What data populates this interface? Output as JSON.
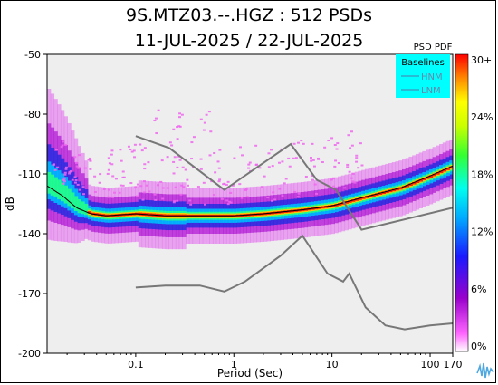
{
  "header": {
    "title_line1": "9S.MTZ03.--.HGZ : 512 PSDs",
    "title_line2": "11-JUL-2025 / 22-JUL-2025"
  },
  "colors": {
    "plot_background": "#eeeeee",
    "legend_background": "#00ffff",
    "baseline_line": "#777777"
  },
  "chart_data": {
    "type": "heatmap",
    "title": "9S.MTZ03.--.HGZ : 512 PSDs",
    "subtitle": "11-JUL-2025 / 22-JUL-2025",
    "xlabel": "Period (Sec)",
    "ylabel": "dB",
    "x_scale": "log",
    "xlim": [
      0.0125,
      170
    ],
    "ylim": [
      -200,
      -50
    ],
    "x_ticks": [
      {
        "value": 0.1,
        "label": "0.1"
      },
      {
        "value": 1,
        "label": "1"
      },
      {
        "value": 10,
        "label": "10"
      },
      {
        "value": 100,
        "label": "100"
      },
      {
        "value": 170,
        "label": "170"
      }
    ],
    "y_ticks": [
      {
        "value": -50,
        "label": "-50"
      },
      {
        "value": -80,
        "label": "-80"
      },
      {
        "value": -110,
        "label": "-110"
      },
      {
        "value": -140,
        "label": "-140"
      },
      {
        "value": -170,
        "label": "-170"
      },
      {
        "value": -200,
        "label": "-200"
      }
    ],
    "colorbar": {
      "title": "PSD PDF",
      "range_percent": [
        0,
        30
      ],
      "tick_labels": [
        "30+",
        "24%",
        "18%",
        "12%",
        "6%",
        "0%"
      ]
    },
    "legend": {
      "placement": "top-right",
      "title": "Baselines",
      "entries": [
        "HNM",
        "LNM"
      ]
    },
    "baselines": {
      "HNM": [
        {
          "x": 0.1,
          "y": -91
        },
        {
          "x": 0.22,
          "y": -97
        },
        {
          "x": 0.8,
          "y": -118
        },
        {
          "x": 3.8,
          "y": -95
        },
        {
          "x": 7,
          "y": -113
        },
        {
          "x": 11,
          "y": -118
        },
        {
          "x": 20,
          "y": -138
        },
        {
          "x": 170,
          "y": -127
        }
      ],
      "LNM": [
        {
          "x": 0.1,
          "y": -167
        },
        {
          "x": 0.2,
          "y": -166
        },
        {
          "x": 0.45,
          "y": -166
        },
        {
          "x": 0.8,
          "y": -169
        },
        {
          "x": 1.3,
          "y": -164
        },
        {
          "x": 3,
          "y": -151
        },
        {
          "x": 5,
          "y": -141
        },
        {
          "x": 9,
          "y": -160
        },
        {
          "x": 13,
          "y": -164
        },
        {
          "x": 15,
          "y": -160
        },
        {
          "x": 22,
          "y": -177
        },
        {
          "x": 35,
          "y": -186
        },
        {
          "x": 55,
          "y": -188
        },
        {
          "x": 100,
          "y": -186
        },
        {
          "x": 170,
          "y": -185
        }
      ]
    },
    "pdf_mode_curve": [
      {
        "x": 0.0125,
        "y": -116
      },
      {
        "x": 0.018,
        "y": -121
      },
      {
        "x": 0.025,
        "y": -127
      },
      {
        "x": 0.035,
        "y": -130
      },
      {
        "x": 0.05,
        "y": -131
      },
      {
        "x": 0.1,
        "y": -130
      },
      {
        "x": 0.2,
        "y": -131
      },
      {
        "x": 0.5,
        "y": -131
      },
      {
        "x": 1,
        "y": -131
      },
      {
        "x": 2,
        "y": -130
      },
      {
        "x": 5,
        "y": -128
      },
      {
        "x": 10,
        "y": -126
      },
      {
        "x": 20,
        "y": -122
      },
      {
        "x": 50,
        "y": -117
      },
      {
        "x": 100,
        "y": -111
      },
      {
        "x": 170,
        "y": -106
      }
    ]
  }
}
